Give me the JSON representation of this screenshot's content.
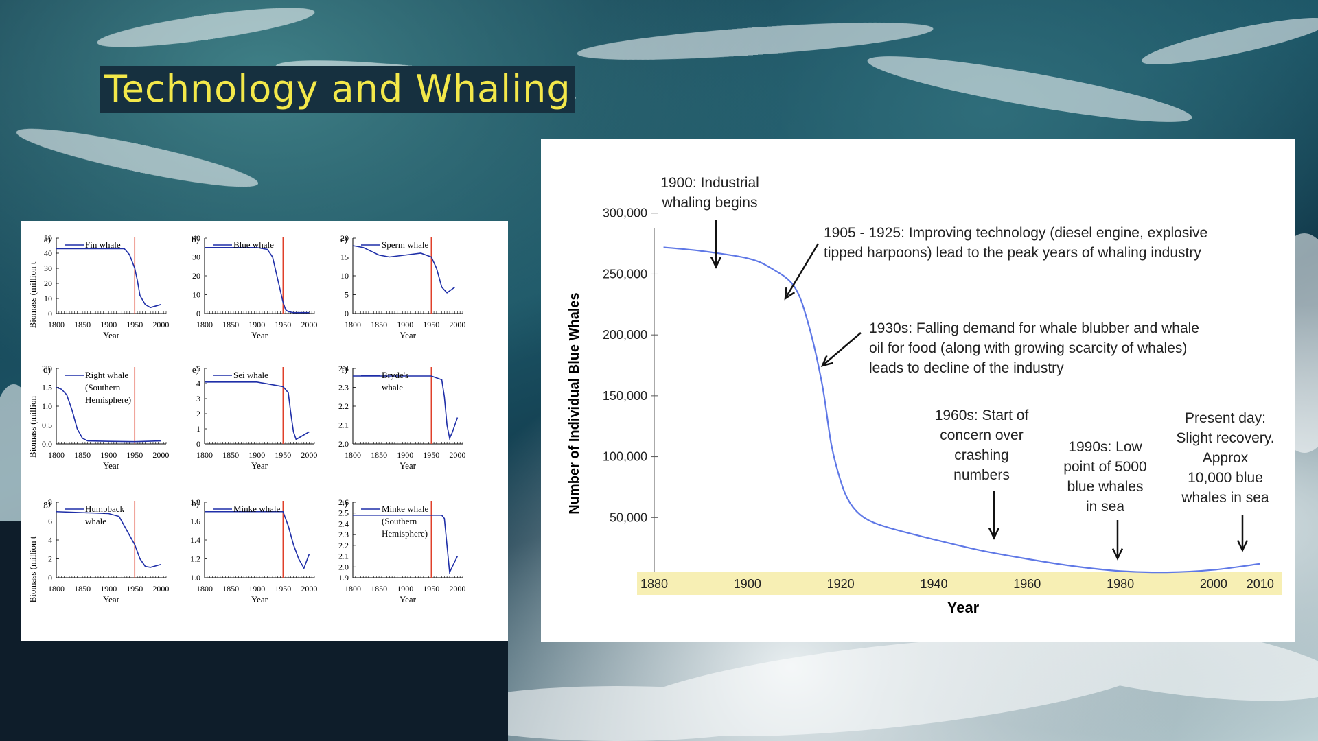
{
  "slide": {
    "title": "Technology and Whaling"
  },
  "colors": {
    "line": "#1f2fa8",
    "marker": "#e0402a",
    "band": "#f7efb4",
    "blue_line": "#5f78e6"
  },
  "left_figure": {
    "x_label": "Year",
    "y_labels": {
      "row1": "Biomass (million t",
      "row2": "Biomass (million",
      "row3": "Biomass (million t"
    }
  },
  "chart_data": [
    {
      "type": "line",
      "panel": "a)",
      "label": "Fin whale",
      "x": [
        1800,
        1850,
        1900,
        1930,
        1940,
        1950,
        1955,
        1960,
        1970,
        1980,
        2000
      ],
      "values": [
        43,
        43,
        43,
        43,
        39,
        30,
        22,
        12,
        6,
        4,
        6
      ],
      "xticks": [
        "1800",
        "1850",
        "1900",
        "1950",
        "2000"
      ],
      "yticks": [
        "0",
        "10",
        "20",
        "30",
        "40",
        "50"
      ],
      "ylim": [
        0,
        50
      ],
      "marker_year": 1950
    },
    {
      "type": "line",
      "panel": "b)",
      "label": "Blue whale",
      "x": [
        1800,
        1850,
        1900,
        1920,
        1930,
        1940,
        1950,
        1955,
        1960,
        1970,
        2000
      ],
      "values": [
        35,
        35,
        35,
        34,
        30,
        18,
        6,
        2,
        1,
        0.5,
        0.5
      ],
      "xticks": [
        "1800",
        "1850",
        "1900",
        "1950",
        "2000"
      ],
      "yticks": [
        "0",
        "10",
        "20",
        "30",
        "40"
      ],
      "ylim": [
        0,
        40
      ],
      "marker_year": 1950
    },
    {
      "type": "line",
      "panel": "c)",
      "label": "Sperm whale",
      "x": [
        1800,
        1820,
        1850,
        1870,
        1900,
        1930,
        1950,
        1960,
        1970,
        1980,
        1995
      ],
      "values": [
        18,
        17.5,
        15.5,
        15,
        15.5,
        16,
        15,
        12,
        7,
        5.5,
        7
      ],
      "xticks": [
        "1800",
        "1850",
        "1900",
        "1950",
        "2000"
      ],
      "yticks": [
        "0",
        "5",
        "10",
        "15",
        "20"
      ],
      "ylim": [
        0,
        20
      ],
      "marker_year": 1950
    },
    {
      "type": "line",
      "panel": "d)",
      "label": "Right whale (Southern Hemisphere)",
      "x": [
        1800,
        1810,
        1820,
        1830,
        1840,
        1850,
        1860,
        1900,
        1950,
        2000
      ],
      "values": [
        1.5,
        1.45,
        1.3,
        0.9,
        0.4,
        0.15,
        0.08,
        0.07,
        0.06,
        0.08
      ],
      "xticks": [
        "1800",
        "1850",
        "1900",
        "1950",
        "2000"
      ],
      "yticks": [
        "0.0",
        "0.5",
        "1.0",
        "1.5",
        "2.0"
      ],
      "ylim": [
        0,
        2
      ],
      "marker_year": 1950
    },
    {
      "type": "line",
      "panel": "e)",
      "label": "Sei whale",
      "x": [
        1800,
        1850,
        1900,
        1950,
        1960,
        1965,
        1970,
        1975,
        1985,
        2000
      ],
      "values": [
        4.1,
        4.1,
        4.1,
        3.8,
        3.4,
        2,
        0.8,
        0.3,
        0.5,
        0.8
      ],
      "xticks": [
        "1800",
        "1850",
        "1900",
        "1950",
        "2000"
      ],
      "yticks": [
        "0",
        "1",
        "2",
        "3",
        "4",
        "5"
      ],
      "ylim": [
        0,
        5
      ],
      "marker_year": 1950
    },
    {
      "type": "line",
      "panel": "f)",
      "label": "Bryde's whale",
      "x": [
        1800,
        1850,
        1900,
        1950,
        1960,
        1970,
        1975,
        1980,
        1985,
        1990,
        2000
      ],
      "values": [
        2.36,
        2.36,
        2.36,
        2.36,
        2.35,
        2.34,
        2.25,
        2.1,
        2.03,
        2.06,
        2.14
      ],
      "xticks": [
        "1800",
        "1850",
        "1900",
        "1950",
        "2000"
      ],
      "yticks": [
        "2.0",
        "2.1",
        "2.2",
        "2.3",
        "2.4"
      ],
      "ylim": [
        2,
        2.4
      ],
      "marker_year": 1950
    },
    {
      "type": "line",
      "panel": "g)",
      "label": "Humpback whale",
      "x": [
        1800,
        1850,
        1900,
        1920,
        1930,
        1940,
        1950,
        1960,
        1970,
        1980,
        2000
      ],
      "values": [
        7,
        6.9,
        6.8,
        6.5,
        5.5,
        4.5,
        3.5,
        2,
        1.2,
        1.1,
        1.4
      ],
      "xticks": [
        "1800",
        "1850",
        "1900",
        "1950",
        "2000"
      ],
      "yticks": [
        "0",
        "2",
        "4",
        "6",
        "8"
      ],
      "ylim": [
        0,
        8
      ],
      "marker_year": 1950
    },
    {
      "type": "line",
      "panel": "h)",
      "label": "Minke whale",
      "x": [
        1800,
        1850,
        1900,
        1950,
        1960,
        1970,
        1980,
        1990,
        2000
      ],
      "values": [
        1.7,
        1.7,
        1.7,
        1.7,
        1.55,
        1.35,
        1.2,
        1.1,
        1.25
      ],
      "xticks": [
        "1800",
        "1850",
        "1900",
        "1950",
        "2000"
      ],
      "yticks": [
        "1.0",
        "1.2",
        "1.4",
        "1.6",
        "1.8"
      ],
      "ylim": [
        1,
        1.8
      ],
      "marker_year": 1950
    },
    {
      "type": "line",
      "panel": "i)",
      "label": "Minke whale (Southern Hemisphere)",
      "x": [
        1800,
        1850,
        1900,
        1950,
        1970,
        1975,
        1980,
        1985,
        1990,
        2000
      ],
      "values": [
        2.48,
        2.48,
        2.48,
        2.48,
        2.48,
        2.45,
        2.2,
        1.95,
        2.0,
        2.1
      ],
      "xticks": [
        "1800",
        "1850",
        "1900",
        "1950",
        "2000"
      ],
      "yticks": [
        "1.9",
        "2.0",
        "2.1",
        "2.2",
        "2.3",
        "2.4",
        "2.5",
        "2.6"
      ],
      "ylim": [
        1.9,
        2.6
      ],
      "marker_year": 1950
    },
    {
      "type": "line",
      "name": "blue_whales",
      "xlabel": "Year",
      "ylabel": "Number of Individual Blue Whales",
      "x": [
        1882,
        1890,
        1900,
        1905,
        1910,
        1913,
        1916,
        1918,
        1920,
        1922,
        1925,
        1930,
        1940,
        1950,
        1960,
        1970,
        1980,
        1990,
        2000,
        2010
      ],
      "values": [
        272000,
        269000,
        263000,
        255000,
        240000,
        210000,
        160000,
        110000,
        80000,
        62000,
        50000,
        42000,
        32000,
        23000,
        16000,
        10000,
        6000,
        5000,
        7000,
        12000
      ],
      "xticks": [
        "1880",
        "1900",
        "1920",
        "1940",
        "1960",
        "1980",
        "2000",
        "2010"
      ],
      "yticks": [
        "50,000",
        "100,000",
        "150,000",
        "200,000",
        "250,000",
        "300,000"
      ],
      "xlim": [
        1880,
        2014
      ],
      "ylim": [
        0,
        310000
      ],
      "annotations": [
        {
          "lines": [
            "1900: Industrial",
            "whaling begins"
          ]
        },
        {
          "lines": [
            "1905 - 1925: Improving technology (diesel engine, explosive",
            "tipped harpoons) lead to the peak years of whaling industry"
          ]
        },
        {
          "lines": [
            "1930s: Falling demand for whale blubber and whale",
            "oil for food (along with growing scarcity of whales)",
            "leads to decline of the industry"
          ]
        },
        {
          "lines": [
            "1960s: Start of",
            "concern over",
            "crashing",
            "numbers"
          ]
        },
        {
          "lines": [
            "1990s: Low",
            "point of 5000",
            "blue whales",
            "in sea"
          ]
        },
        {
          "lines": [
            "Present day:",
            "Slight recovery.",
            "Approx",
            "10,000 blue",
            "whales in sea"
          ]
        }
      ]
    }
  ]
}
